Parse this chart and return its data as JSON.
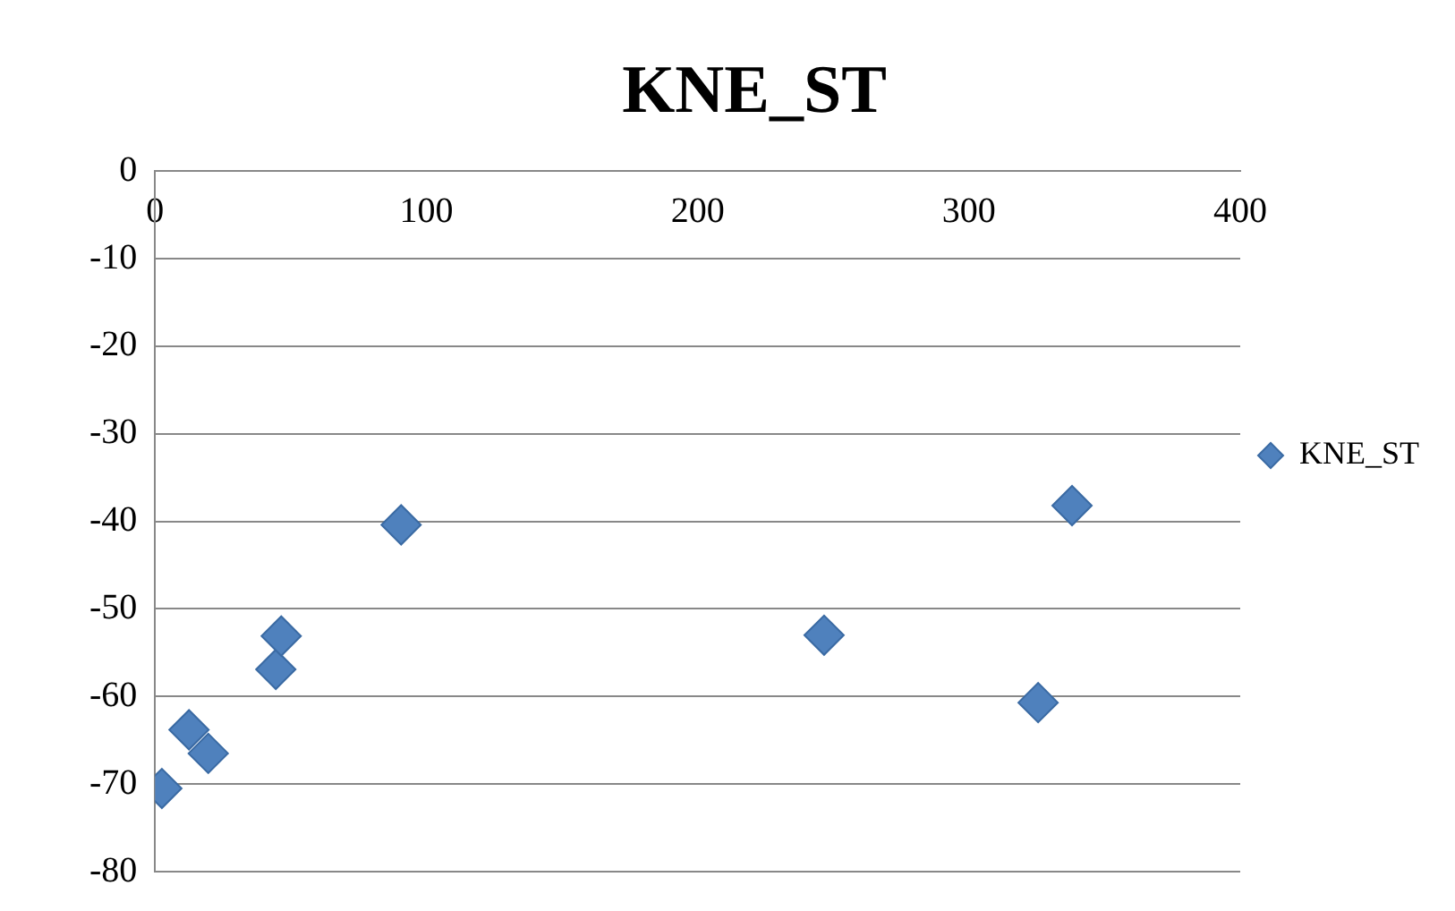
{
  "chart_data": {
    "type": "scatter",
    "title": "KNE_ST",
    "series": [
      {
        "name": "KNE_ST",
        "color": "#4f81bd",
        "x": [
          2.5,
          12.5,
          19.6,
          44.5,
          46.5,
          90.7,
          246.6,
          325.5,
          338
        ],
        "values": [
          -70.5,
          -63.8,
          -66.5,
          -56.9,
          -53.1,
          -40.4,
          -53,
          -60.7,
          -38.2
        ]
      }
    ],
    "xlim": [
      0,
      400
    ],
    "xticks": [
      0,
      100,
      200,
      300,
      400
    ],
    "ylim": [
      -80,
      0
    ],
    "yticks": [
      -80,
      -70,
      -60,
      -50,
      -40,
      -30,
      -20,
      -10,
      0
    ],
    "grid": "y",
    "legend": "right",
    "marker": "diamond"
  }
}
